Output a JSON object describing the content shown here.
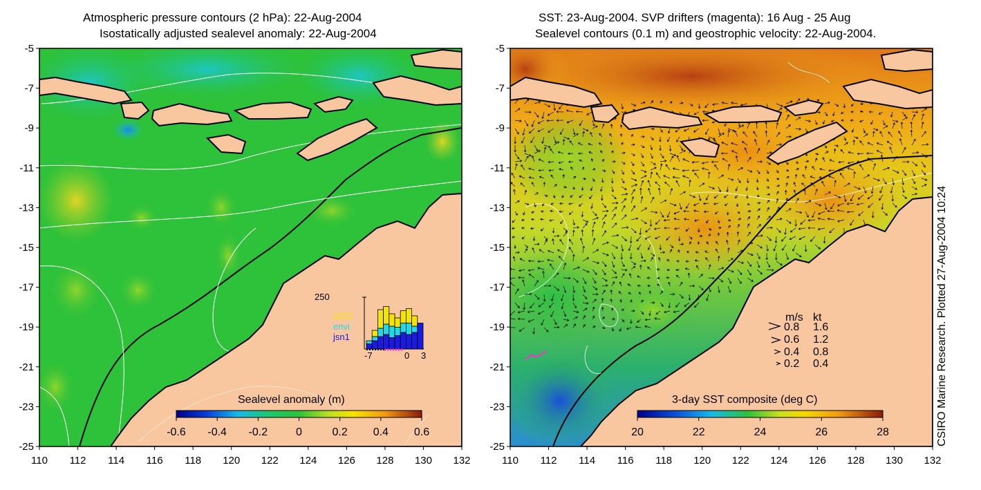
{
  "left_panel": {
    "title_line1": "Atmospheric pressure contours (2 hPa): 22-Aug-2004",
    "title_line2": "Isostatically adjusted sealevel anomaly: 22-Aug-2004",
    "lat_ticks": [
      "-5",
      "-7",
      "-9",
      "-11",
      "-13",
      "-15",
      "-17",
      "-19",
      "-21",
      "-23",
      "-25"
    ],
    "lon_ticks": [
      "110",
      "112",
      "114",
      "116",
      "118",
      "120",
      "122",
      "124",
      "126",
      "128",
      "130",
      "132"
    ],
    "colorbar": {
      "label": "Sealevel anomaly (m)",
      "ticks": [
        "-0.6",
        "-0.4",
        "-0.2",
        "0",
        "0.2",
        "0.4",
        "0.6"
      ]
    },
    "inset": {
      "ymax_label": "250",
      "x_labels": [
        "-7",
        "0",
        "3"
      ],
      "legend": [
        {
          "name": "GFO",
          "color": "#f5e400"
        },
        {
          "name": "envi",
          "color": "#22d8e8"
        },
        {
          "name": "jsn1",
          "color": "#1a1ae0"
        }
      ],
      "bars": [
        {
          "jsn1": 25,
          "envi": 15,
          "gfo": 0
        },
        {
          "jsn1": 40,
          "envi": 20,
          "gfo": 30
        },
        {
          "jsn1": 60,
          "envi": 40,
          "gfo": 90
        },
        {
          "jsn1": 70,
          "envi": 50,
          "gfo": 85
        },
        {
          "jsn1": 55,
          "envi": 55,
          "gfo": 60
        },
        {
          "jsn1": 65,
          "envi": 40,
          "gfo": 45
        },
        {
          "jsn1": 80,
          "envi": 45,
          "gfo": 60
        },
        {
          "jsn1": 70,
          "envi": 55,
          "gfo": 70
        },
        {
          "jsn1": 80,
          "envi": 30,
          "gfo": 50
        },
        {
          "jsn1": 125,
          "envi": 0,
          "gfo": 0
        }
      ]
    }
  },
  "right_panel": {
    "title_line1": "SST: 23-Aug-2004. SVP drifters (magenta): 16 Aug - 25 Aug",
    "title_line2": "Sealevel contours (0.1 m) and geostrophic velocity: 22-Aug-2004.",
    "lat_ticks": [
      "-5",
      "-7",
      "-9",
      "-11",
      "-13",
      "-15",
      "-17",
      "-19",
      "-21",
      "-23",
      "-25"
    ],
    "lon_ticks": [
      "110",
      "112",
      "114",
      "116",
      "118",
      "120",
      "122",
      "124",
      "126",
      "128",
      "130",
      "132"
    ],
    "colorbar": {
      "label": "3-day SST composite (deg C)",
      "ticks": [
        "20",
        "22",
        "24",
        "26",
        "28"
      ]
    },
    "velocity_legend": {
      "header_ms": "m/s",
      "header_kt": "kt",
      "rows": [
        {
          "ms": "0.8",
          "kt": "1.6"
        },
        {
          "ms": "0.6",
          "kt": "1.2"
        },
        {
          "ms": "0.4",
          "kt": "0.8"
        },
        {
          "ms": "0.2",
          "kt": "0.4"
        }
      ]
    }
  },
  "credit": "CSIRO Marine Research. Plotted 27-Aug-2004 10:24",
  "colors": {
    "land": "#f9c79f",
    "sla_bg": "#2ec13a",
    "sst_bg": "#f2aa1a"
  }
}
